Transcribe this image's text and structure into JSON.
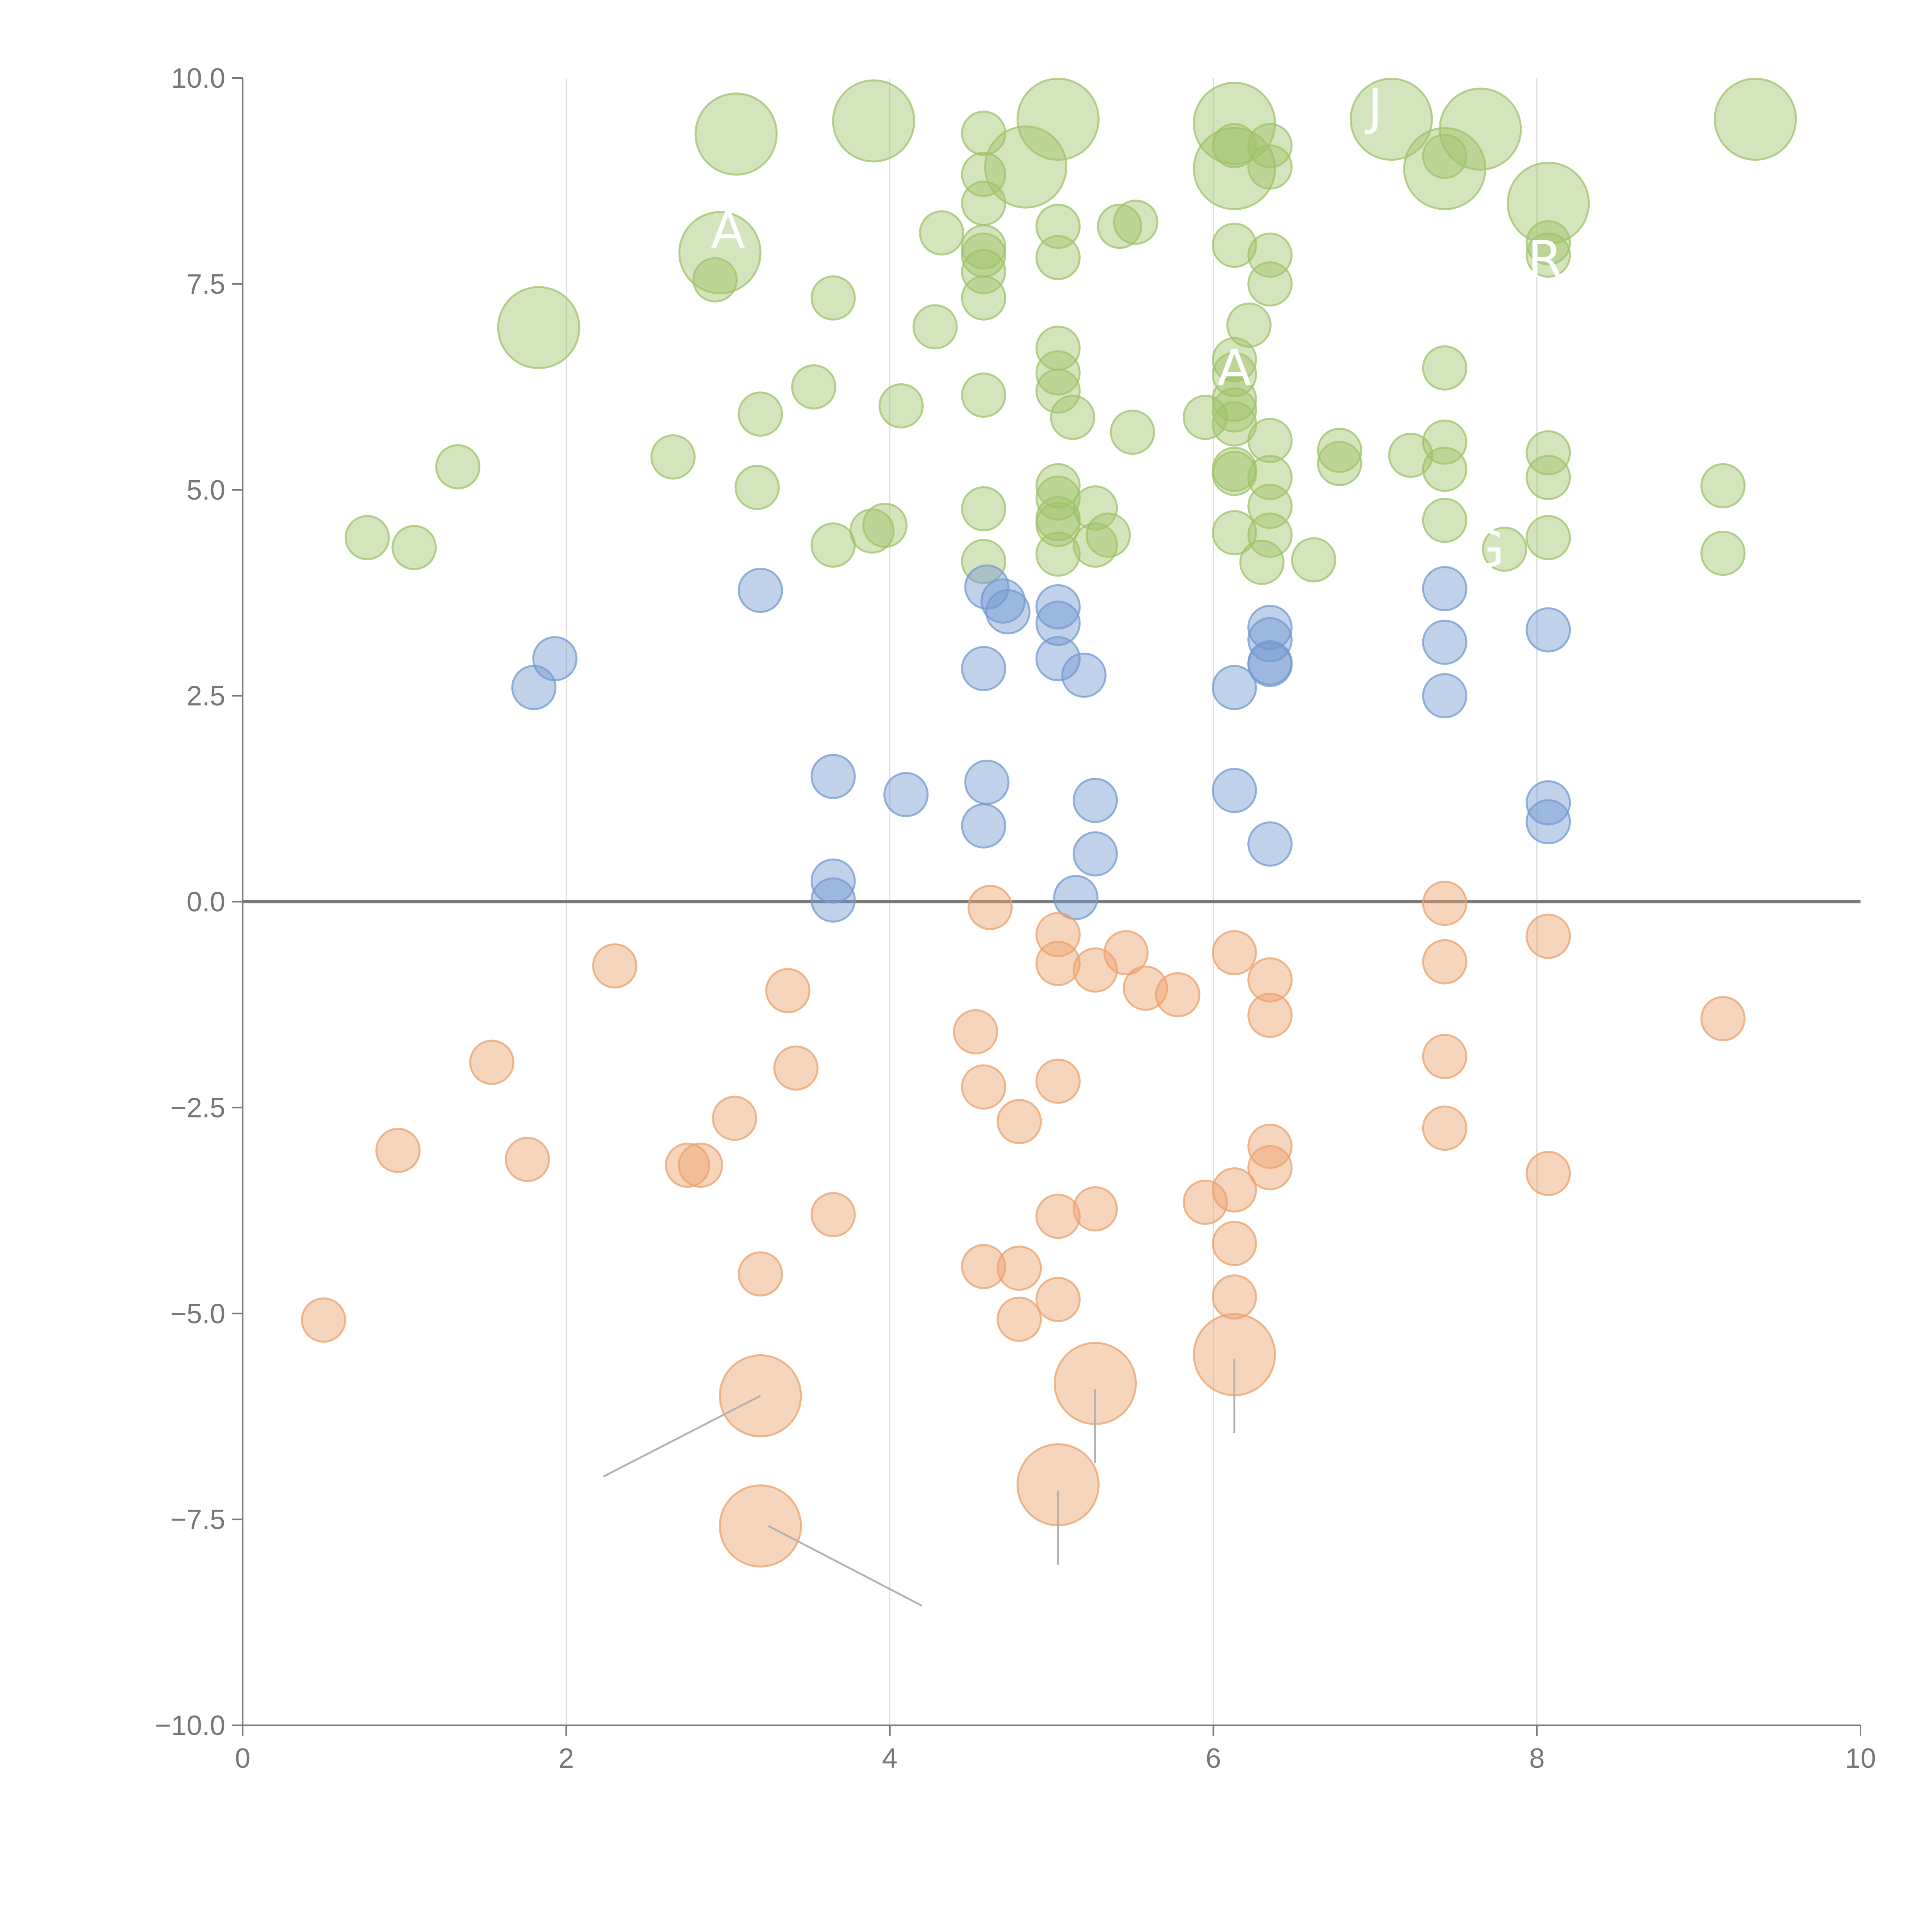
{
  "chart_data": {
    "type": "scatter",
    "title": "",
    "xlabel": "",
    "ylabel": "",
    "xlim": [
      0,
      10
    ],
    "ylim": [
      -10,
      10
    ],
    "x_ticks": [
      0,
      2,
      4,
      6,
      8,
      10
    ],
    "x_tick_labels": [
      "0",
      "2",
      "4",
      "6",
      "8",
      "10"
    ],
    "y_ticks": [
      10,
      7.5,
      5,
      2.5,
      0,
      -2.5,
      -5,
      -7.5,
      -10
    ],
    "y_tick_labels": [
      "10.0",
      "7.5",
      "5.0",
      "2.5",
      "0.0",
      "−2.5",
      "−5.0",
      "−7.5",
      "−10.0"
    ],
    "grid": {
      "vertical": [
        2,
        4,
        6,
        8
      ],
      "zero_line": true
    },
    "series": [
      {
        "name": "green",
        "color": "#9fc36a",
        "points": [
          [
            3.05,
            9.32,
            2
          ],
          [
            3.9,
            9.48,
            2
          ],
          [
            5.04,
            9.5,
            2
          ],
          [
            6.13,
            9.45,
            2
          ],
          [
            7.1,
            9.5,
            2
          ],
          [
            7.65,
            9.38,
            2
          ],
          [
            9.35,
            9.5,
            2
          ],
          [
            4.84,
            8.92,
            2
          ],
          [
            6.13,
            8.9,
            2
          ],
          [
            7.43,
            8.9,
            2
          ],
          [
            8.07,
            8.48,
            2
          ],
          [
            2.95,
            7.88,
            2
          ],
          [
            1.83,
            6.97,
            2
          ],
          [
            4.58,
            9.33,
            1
          ],
          [
            4.58,
            8.83,
            1
          ],
          [
            4.58,
            8.48,
            1
          ],
          [
            4.58,
            7.95,
            1
          ],
          [
            4.58,
            7.85,
            1
          ],
          [
            4.58,
            7.65,
            1
          ],
          [
            4.58,
            7.33,
            1
          ],
          [
            4.32,
            8.12,
            1
          ],
          [
            4.28,
            6.98,
            1
          ],
          [
            3.65,
            7.33,
            1
          ],
          [
            2.92,
            7.55,
            1
          ],
          [
            5.04,
            8.2,
            1
          ],
          [
            5.04,
            7.82,
            1
          ],
          [
            5.42,
            8.2,
            1
          ],
          [
            5.52,
            8.25,
            1
          ],
          [
            6.13,
            7.97,
            1
          ],
          [
            6.35,
            7.85,
            1
          ],
          [
            6.35,
            7.5,
            1
          ],
          [
            6.22,
            7.0,
            1
          ],
          [
            6.13,
            9.18,
            1
          ],
          [
            6.35,
            9.18,
            1
          ],
          [
            6.35,
            8.92,
            1
          ],
          [
            7.43,
            9.05,
            1
          ],
          [
            8.07,
            8.0,
            1
          ],
          [
            8.07,
            7.85,
            1
          ],
          [
            3.2,
            5.92,
            1
          ],
          [
            3.53,
            6.25,
            1
          ],
          [
            4.07,
            6.02,
            1
          ],
          [
            4.58,
            6.15,
            1
          ],
          [
            5.04,
            6.72,
            1
          ],
          [
            5.04,
            6.42,
            1
          ],
          [
            5.04,
            6.2,
            1
          ],
          [
            5.13,
            5.88,
            1
          ],
          [
            5.5,
            5.7,
            1
          ],
          [
            5.95,
            5.88,
            1
          ],
          [
            6.13,
            6.58,
            1
          ],
          [
            6.13,
            6.4,
            1
          ],
          [
            6.13,
            6.1,
            1
          ],
          [
            6.13,
            5.97,
            1
          ],
          [
            6.13,
            5.8,
            1
          ],
          [
            6.35,
            5.6,
            1
          ],
          [
            7.43,
            6.48,
            1
          ],
          [
            7.43,
            5.58,
            1
          ],
          [
            7.22,
            5.42,
            1
          ],
          [
            6.78,
            5.48,
            1
          ],
          [
            6.78,
            5.32,
            1
          ],
          [
            8.07,
            5.45,
            1
          ],
          [
            1.33,
            5.28,
            1
          ],
          [
            2.66,
            5.4,
            1
          ],
          [
            3.18,
            5.03,
            1
          ],
          [
            0.77,
            4.42,
            1
          ],
          [
            1.06,
            4.3,
            1
          ],
          [
            3.65,
            4.33,
            1
          ],
          [
            3.89,
            4.5,
            1
          ],
          [
            3.97,
            4.57,
            1
          ],
          [
            4.58,
            4.77,
            1
          ],
          [
            4.58,
            4.13,
            1
          ],
          [
            5.04,
            5.05,
            1
          ],
          [
            5.04,
            4.9,
            1
          ],
          [
            5.04,
            4.65,
            1
          ],
          [
            5.04,
            4.58,
            1
          ],
          [
            5.04,
            4.22,
            1
          ],
          [
            5.27,
            4.78,
            1
          ],
          [
            5.27,
            4.33,
            1
          ],
          [
            5.35,
            4.45,
            1
          ],
          [
            6.13,
            5.25,
            1
          ],
          [
            6.13,
            5.2,
            1
          ],
          [
            6.13,
            4.48,
            1
          ],
          [
            6.35,
            5.15,
            1
          ],
          [
            6.35,
            4.8,
            1
          ],
          [
            6.35,
            4.45,
            1
          ],
          [
            6.3,
            4.12,
            1
          ],
          [
            6.62,
            4.15,
            1
          ],
          [
            7.43,
            5.25,
            1
          ],
          [
            7.43,
            4.63,
            1
          ],
          [
            7.8,
            4.28,
            1
          ],
          [
            8.07,
            5.15,
            1
          ],
          [
            8.07,
            4.42,
            1
          ],
          [
            9.15,
            5.05,
            1
          ],
          [
            9.15,
            4.23,
            1
          ]
        ]
      },
      {
        "name": "blue",
        "color": "#7399d0",
        "points": [
          [
            3.2,
            3.78,
            1
          ],
          [
            1.93,
            2.95,
            1
          ],
          [
            1.8,
            2.6,
            1
          ],
          [
            4.6,
            3.82,
            1
          ],
          [
            4.7,
            3.65,
            1
          ],
          [
            4.73,
            3.52,
            1
          ],
          [
            5.04,
            3.58,
            1
          ],
          [
            5.04,
            3.38,
            1
          ],
          [
            4.58,
            2.83,
            1
          ],
          [
            5.04,
            2.95,
            1
          ],
          [
            5.2,
            2.75,
            1
          ],
          [
            6.13,
            2.6,
            1
          ],
          [
            6.35,
            3.33,
            1
          ],
          [
            6.35,
            3.18,
            1
          ],
          [
            6.35,
            2.9,
            1
          ],
          [
            6.35,
            2.88,
            1
          ],
          [
            7.43,
            3.8,
            1
          ],
          [
            7.43,
            3.15,
            1
          ],
          [
            7.43,
            2.5,
            1
          ],
          [
            8.07,
            3.3,
            1
          ],
          [
            3.65,
            1.52,
            1
          ],
          [
            4.1,
            1.3,
            1
          ],
          [
            4.6,
            1.45,
            1
          ],
          [
            4.58,
            0.92,
            1
          ],
          [
            5.27,
            1.23,
            1
          ],
          [
            5.27,
            0.58,
            1
          ],
          [
            5.15,
            0.05,
            1
          ],
          [
            3.65,
            0.25,
            1
          ],
          [
            3.65,
            0.02,
            1
          ],
          [
            6.13,
            1.35,
            1
          ],
          [
            6.35,
            0.7,
            1
          ],
          [
            8.07,
            1.2,
            1
          ],
          [
            8.07,
            0.97,
            1
          ]
        ]
      },
      {
        "name": "orange",
        "color": "#eba26c",
        "points": [
          [
            4.62,
            -0.07,
            1
          ],
          [
            5.04,
            -0.4,
            1
          ],
          [
            5.04,
            -0.75,
            1
          ],
          [
            5.27,
            -0.83,
            1
          ],
          [
            5.46,
            -0.62,
            1
          ],
          [
            5.58,
            -1.05,
            1
          ],
          [
            5.78,
            -1.13,
            1
          ],
          [
            6.13,
            -0.62,
            1
          ],
          [
            6.35,
            -0.95,
            1
          ],
          [
            6.35,
            -1.38,
            1
          ],
          [
            7.43,
            -0.02,
            1
          ],
          [
            7.43,
            -0.73,
            1
          ],
          [
            8.07,
            -0.42,
            1
          ],
          [
            2.3,
            -0.78,
            1
          ],
          [
            3.37,
            -1.08,
            1
          ],
          [
            1.54,
            -1.95,
            1
          ],
          [
            3.42,
            -2.02,
            1
          ],
          [
            0.96,
            -3.02,
            1
          ],
          [
            1.76,
            -3.13,
            1
          ],
          [
            2.75,
            -3.2,
            1
          ],
          [
            2.83,
            -3.2,
            1
          ],
          [
            3.04,
            -2.63,
            1
          ],
          [
            4.53,
            -1.58,
            1
          ],
          [
            4.58,
            -2.25,
            1
          ],
          [
            4.8,
            -2.67,
            1
          ],
          [
            5.04,
            -2.18,
            1
          ],
          [
            7.43,
            -1.88,
            1
          ],
          [
            7.43,
            -2.75,
            1
          ],
          [
            9.15,
            -1.42,
            1
          ],
          [
            8.07,
            -3.3,
            1
          ],
          [
            6.35,
            -2.97,
            1
          ],
          [
            6.35,
            -3.23,
            1
          ],
          [
            6.13,
            -3.5,
            1
          ],
          [
            5.95,
            -3.65,
            1
          ],
          [
            6.13,
            -4.15,
            1
          ],
          [
            6.13,
            -4.8,
            1
          ],
          [
            5.27,
            -3.73,
            1
          ],
          [
            5.04,
            -3.82,
            1
          ],
          [
            4.58,
            -4.43,
            1
          ],
          [
            4.8,
            -4.45,
            1
          ],
          [
            5.04,
            -4.83,
            1
          ],
          [
            4.8,
            -5.07,
            1
          ],
          [
            3.65,
            -3.8,
            1
          ],
          [
            3.2,
            -4.52,
            1
          ],
          [
            0.5,
            -5.08,
            1
          ],
          [
            3.2,
            -6.0,
            2
          ],
          [
            3.2,
            -7.58,
            2
          ],
          [
            5.27,
            -5.85,
            2
          ],
          [
            5.04,
            -7.08,
            2
          ],
          [
            6.13,
            -5.5,
            2
          ]
        ]
      }
    ],
    "annotations": [
      {
        "text": "A",
        "x": 3.0,
        "y": 8.15
      },
      {
        "text": "A",
        "x": 6.13,
        "y": 6.48
      },
      {
        "text": "J",
        "x": 7.0,
        "y": 9.65
      },
      {
        "text": "R",
        "x": 8.05,
        "y": 7.8
      },
      {
        "text": "G",
        "x": 7.68,
        "y": 4.28
      }
    ],
    "leaders": [
      [
        3.2,
        -6.0,
        2.23,
        -6.98
      ],
      [
        3.25,
        -7.58,
        4.2,
        -8.55
      ],
      [
        5.27,
        -5.92,
        5.27,
        -6.82
      ],
      [
        5.04,
        -7.15,
        5.04,
        -8.05
      ],
      [
        6.13,
        -5.55,
        6.13,
        -6.45
      ]
    ]
  }
}
